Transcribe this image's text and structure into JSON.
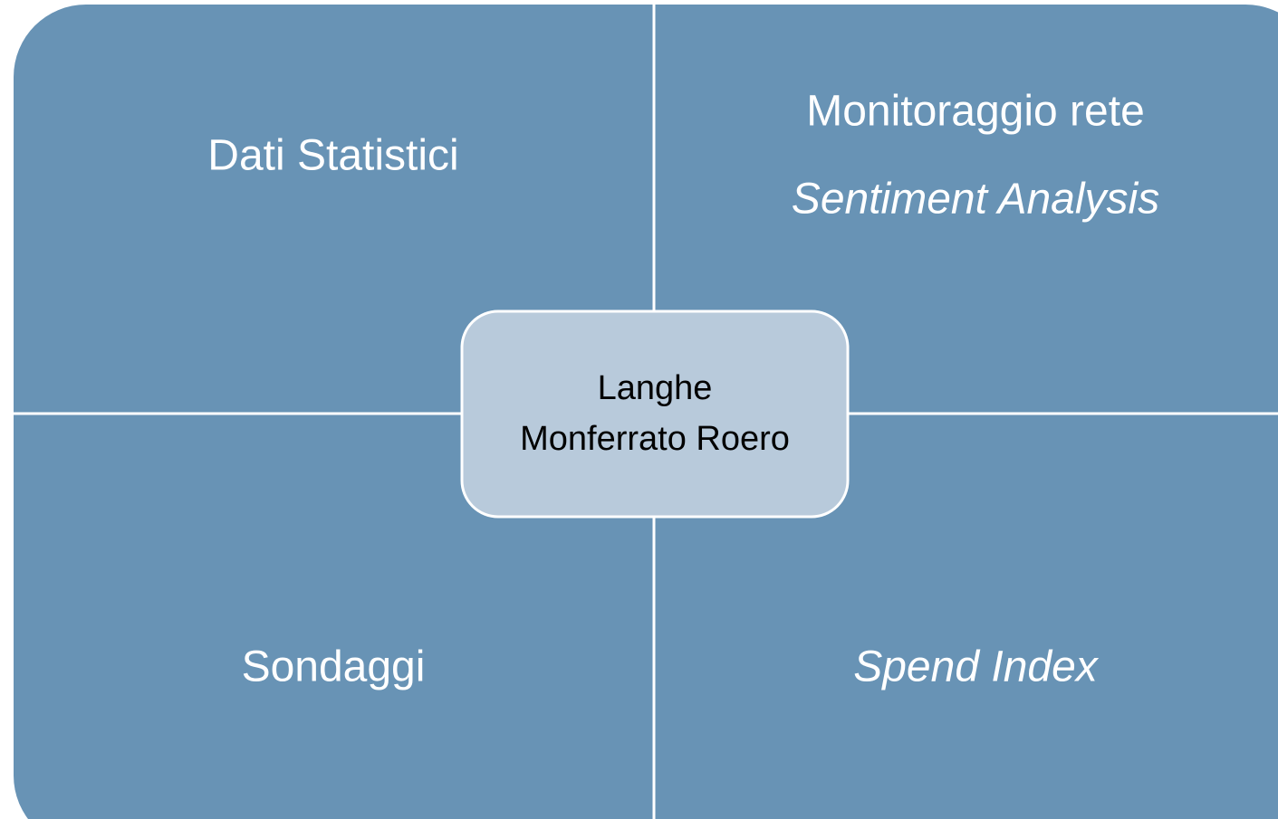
{
  "quadrants": [
    {
      "lines": [
        "Dati Statistici"
      ]
    },
    {
      "lines": [
        "Monitoraggio rete",
        "Sentiment Analysis"
      ]
    },
    {
      "lines": [
        "Sondaggi"
      ]
    },
    {
      "lines": [
        "Spend Index"
      ]
    }
  ],
  "center": {
    "lines": [
      "Langhe",
      "Monferrato Roero"
    ]
  }
}
